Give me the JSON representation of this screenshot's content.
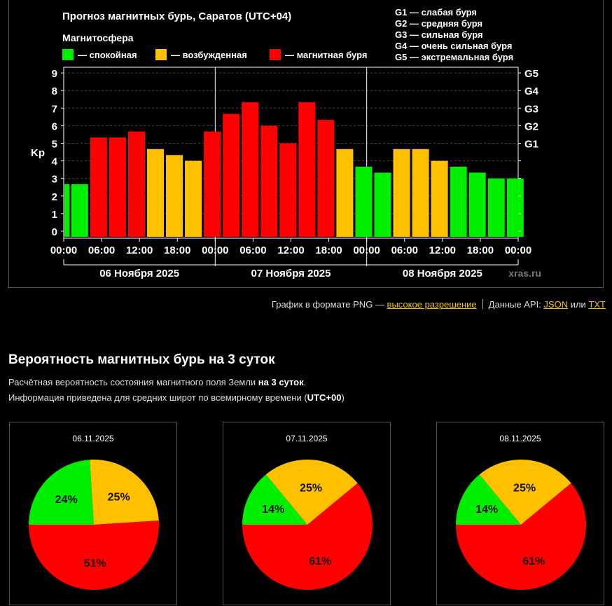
{
  "chart_data": [
    {
      "type": "bar",
      "title": "Прогноз магнитных бурь, Саратов (UTC+04)",
      "legend_title": "Магнитосфера",
      "legend": [
        {
          "label": "— спокойная",
          "color": "#00ee00"
        },
        {
          "label": "— возбужденная",
          "color": "#ffc000"
        },
        {
          "label": "— магнитная буря",
          "color": "#ff0000"
        }
      ],
      "g_scale_legend": [
        "G1 — слабая буря",
        "G2 — средняя буря",
        "G3 — сильная буря",
        "G4 — очень сильная буря",
        "G5 — экстремальная буря"
      ],
      "ylabel": "Kp",
      "ylim": [
        0,
        9
      ],
      "y_ticks": [
        "0",
        "1",
        "2",
        "3",
        "4",
        "5",
        "6",
        "7",
        "8",
        "9"
      ],
      "right_ticks": [
        {
          "label": "G1",
          "kp": 5
        },
        {
          "label": "G2",
          "kp": 6
        },
        {
          "label": "G3",
          "kp": 7
        },
        {
          "label": "G4",
          "kp": 8
        },
        {
          "label": "G5",
          "kp": 9
        }
      ],
      "x_tick_labels": [
        "00:00",
        "06:00",
        "12:00",
        "18:00",
        "00:00",
        "06:00",
        "12:00",
        "18:00",
        "00:00",
        "06:00",
        "12:00",
        "18:00",
        "00:00"
      ],
      "days": [
        "06 Ноября 2025",
        "07 Ноября 2025",
        "08 Ноября 2025"
      ],
      "grid": true,
      "watermark": "xras.ru",
      "values": [
        2.67,
        2.67,
        5.33,
        5.33,
        5.67,
        4.67,
        4.33,
        4.0,
        5.67,
        6.67,
        7.33,
        6.0,
        5.0,
        7.33,
        6.33,
        4.67,
        3.67,
        3.33,
        4.67,
        4.67,
        4.0,
        3.67,
        3.33,
        3.0,
        3.0
      ],
      "colors": [
        "green",
        "green",
        "red",
        "red",
        "red",
        "yellow",
        "yellow",
        "yellow",
        "red",
        "red",
        "red",
        "red",
        "red",
        "red",
        "red",
        "yellow",
        "green",
        "green",
        "yellow",
        "yellow",
        "yellow",
        "green",
        "green",
        "green",
        "green"
      ]
    },
    {
      "type": "pie",
      "title": "06.11.2025",
      "slices": [
        {
          "label": "спокойная",
          "value": 24,
          "color": "#00ee00"
        },
        {
          "label": "возбужденная",
          "value": 25,
          "color": "#ffc000"
        },
        {
          "label": "магнитная буря",
          "value": 51,
          "color": "#ff0000"
        }
      ]
    },
    {
      "type": "pie",
      "title": "07.11.2025",
      "slices": [
        {
          "label": "спокойная",
          "value": 14,
          "color": "#00ee00"
        },
        {
          "label": "возбужденная",
          "value": 25,
          "color": "#ffc000"
        },
        {
          "label": "магнитная буря",
          "value": 61,
          "color": "#ff0000"
        }
      ]
    },
    {
      "type": "pie",
      "title": "08.11.2025",
      "slices": [
        {
          "label": "спокойная",
          "value": 14,
          "color": "#00ee00"
        },
        {
          "label": "возбужденная",
          "value": 25,
          "color": "#ffc000"
        },
        {
          "label": "магнитная буря",
          "value": 61,
          "color": "#ff0000"
        }
      ]
    }
  ],
  "links": {
    "png_prefix": "График в формате PNG — ",
    "png_link": "высокое разрешение",
    "api_prefix": "Данные API: ",
    "json_link": "JSON",
    "or": " или ",
    "txt_link": "TXT"
  },
  "section": {
    "title": "Вероятность магнитных бурь на 3 суток",
    "desc1_prefix": "Расчётная вероятность состояния магнитного поля Земли ",
    "desc1_bold": "на 3 суток",
    "desc1_suffix": ".",
    "desc2_prefix": "Информация приведена для средних широт по всемирному времени (",
    "desc2_bold": "UTC+00",
    "desc2_suffix": ")"
  },
  "palette": {
    "green": "#00ee00",
    "yellow": "#ffc000",
    "red": "#ff0000"
  }
}
